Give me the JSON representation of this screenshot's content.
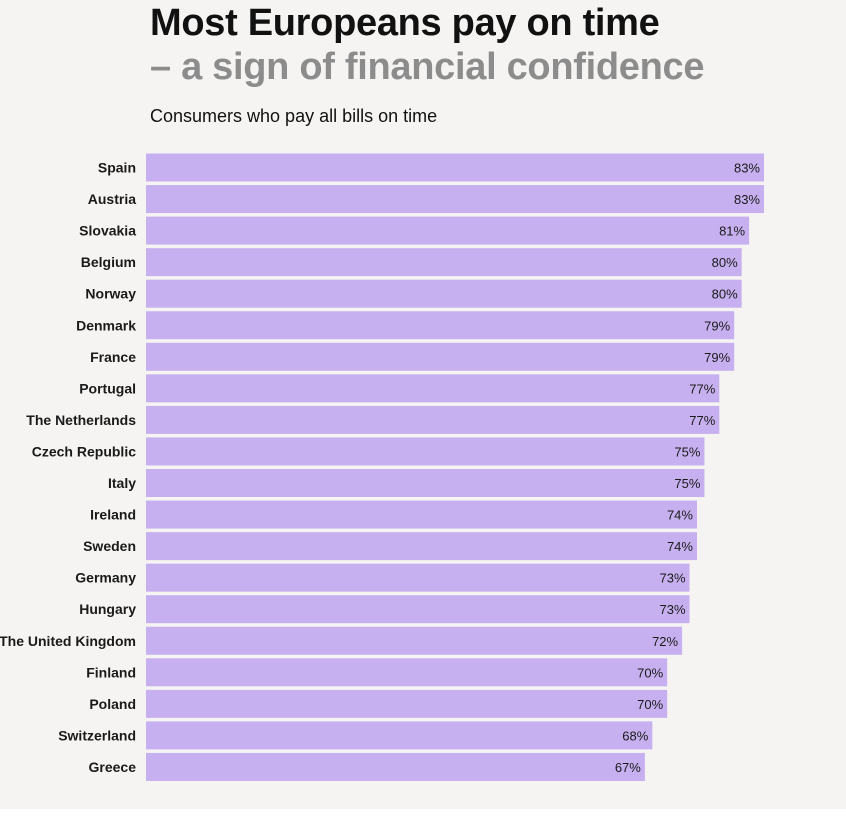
{
  "title": "Most Europeans pay on time",
  "subtitle": "– a sign of financial confidence",
  "caption": "Consumers who pay all bills on time",
  "colors": {
    "bar": "#c7b0ef",
    "subtitle": "#8c8c8c",
    "background": "#f5f4f2"
  },
  "chart_data": {
    "type": "bar",
    "orientation": "horizontal",
    "title": "Most Europeans pay on time",
    "subtitle": "– a sign of financial confidence",
    "xlabel": "",
    "ylabel": "",
    "xlim": [
      0,
      83
    ],
    "grid": false,
    "categories": [
      "Spain",
      "Austria",
      "Slovakia",
      "Belgium",
      "Norway",
      "Denmark",
      "France",
      "Portugal",
      "The Netherlands",
      "Czech Republic",
      "Italy",
      "Ireland",
      "Sweden",
      "Germany",
      "Hungary",
      "The United Kingdom",
      "Finland",
      "Poland",
      "Switzerland",
      "Greece"
    ],
    "values": [
      83,
      83,
      81,
      80,
      80,
      79,
      79,
      77,
      77,
      75,
      75,
      74,
      74,
      73,
      73,
      72,
      70,
      70,
      68,
      67
    ],
    "value_labels": [
      "83%",
      "83%",
      "81%",
      "80%",
      "80%",
      "79%",
      "79%",
      "77%",
      "77%",
      "75%",
      "75%",
      "74%",
      "74%",
      "73%",
      "73%",
      "72%",
      "70%",
      "70%",
      "68%",
      "67%"
    ]
  }
}
